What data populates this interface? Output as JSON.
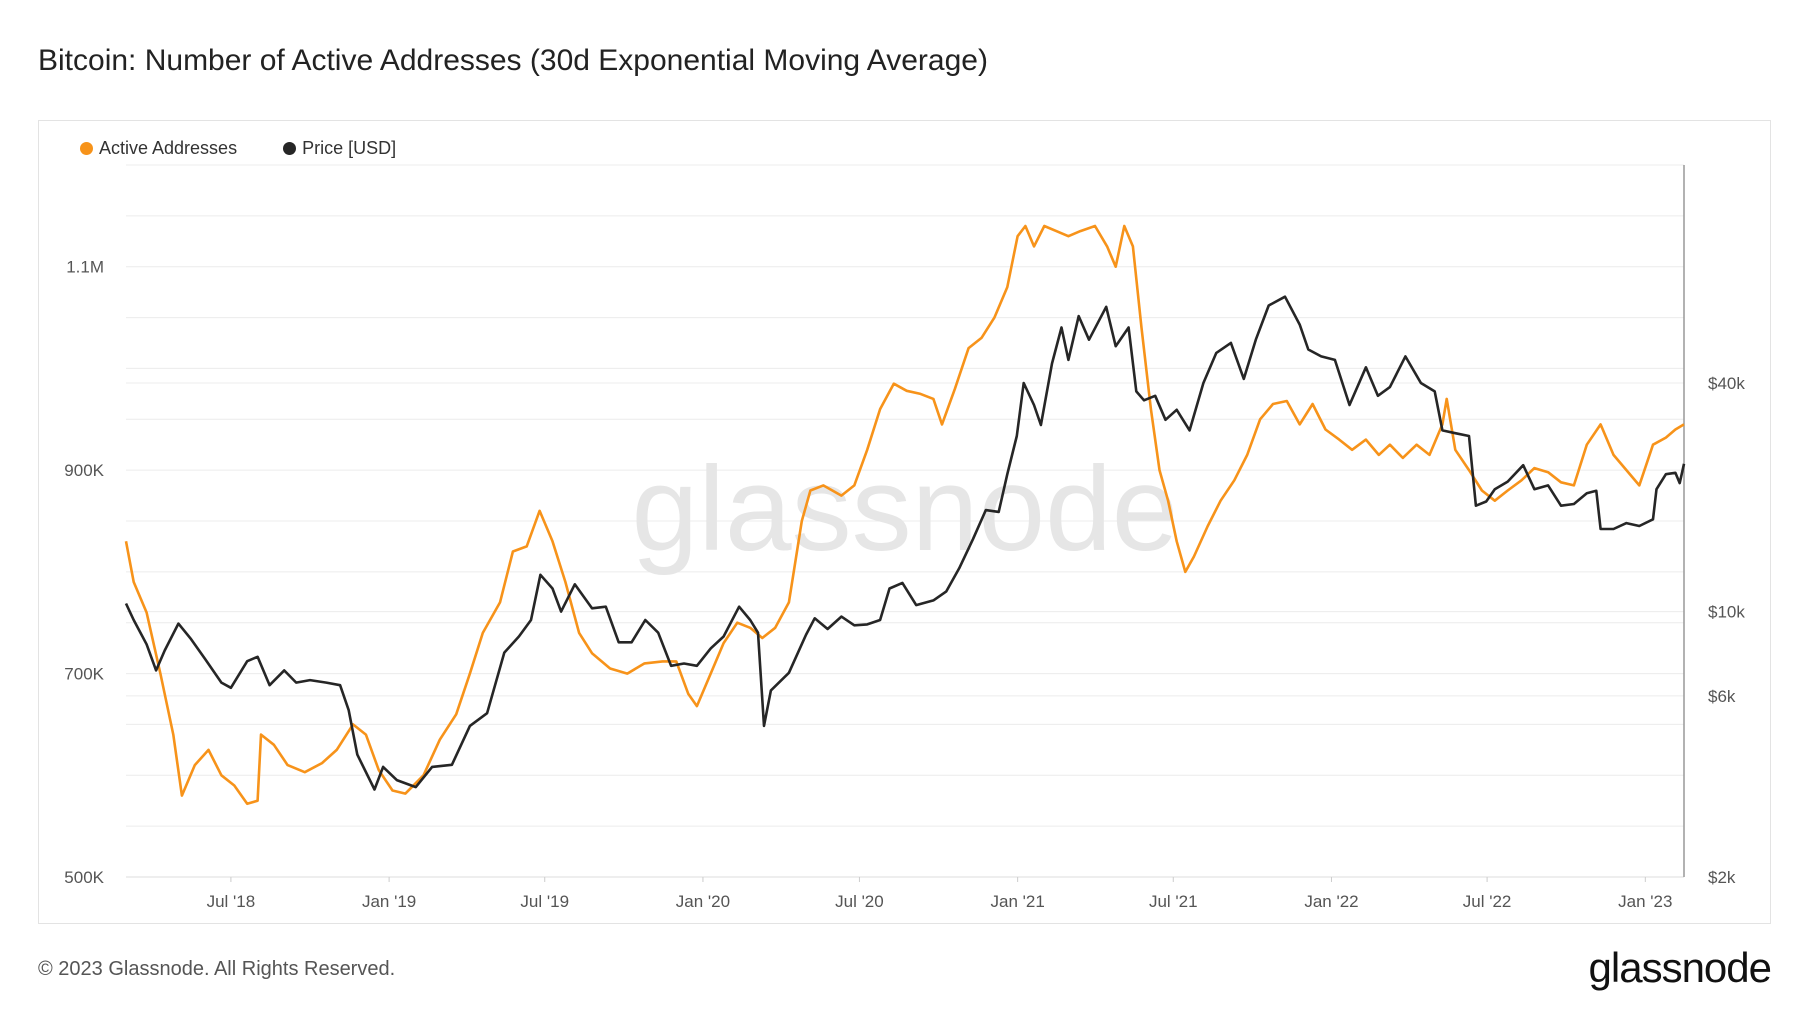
{
  "title": "Bitcoin: Number of Active Addresses (30d Exponential Moving Average)",
  "footer": "© 2023 Glassnode. All Rights Reserved.",
  "brand": "glassnode",
  "watermark": "glassnode",
  "colors": {
    "active": "#f7931a",
    "price": "#262626",
    "grid": "#ececec",
    "axisText": "#555555"
  },
  "legend": [
    {
      "label": "Active Addresses",
      "color": "#f7931a"
    },
    {
      "label": "Price [USD]",
      "color": "#262626"
    }
  ],
  "chart_data": {
    "type": "line",
    "title": "Bitcoin: Number of Active Addresses (30d Exponential Moving Average)",
    "x_range": [
      "2018-03-01",
      "2023-02-15"
    ],
    "x_ticks": [
      {
        "date": "2018-07-01",
        "label": "Jul '18"
      },
      {
        "date": "2019-01-01",
        "label": "Jan '19"
      },
      {
        "date": "2019-07-01",
        "label": "Jul '19"
      },
      {
        "date": "2020-01-01",
        "label": "Jan '20"
      },
      {
        "date": "2020-07-01",
        "label": "Jul '20"
      },
      {
        "date": "2021-01-01",
        "label": "Jan '21"
      },
      {
        "date": "2021-07-01",
        "label": "Jul '21"
      },
      {
        "date": "2022-01-01",
        "label": "Jan '22"
      },
      {
        "date": "2022-07-01",
        "label": "Jul '22"
      },
      {
        "date": "2023-01-01",
        "label": "Jan '23"
      }
    ],
    "y_left": {
      "min": 500000,
      "max": 1200000,
      "ticks": [
        500000,
        700000,
        900000,
        1100000
      ],
      "tick_labels": [
        "500K",
        "700K",
        "900K",
        "1.1M"
      ]
    },
    "y_right": {
      "scale": "log",
      "min": 2000,
      "max": 150000,
      "ticks": [
        2000,
        6000,
        10000,
        40000
      ],
      "tick_labels": [
        "$2k",
        "$6k",
        "$10k",
        "$40k"
      ]
    },
    "grid": true,
    "legend_position": "top-left",
    "series": [
      {
        "name": "Active Addresses",
        "axis": "left",
        "color": "#f7931a",
        "points": [
          [
            "2018-03-01",
            830000
          ],
          [
            "2018-03-10",
            790000
          ],
          [
            "2018-03-25",
            760000
          ],
          [
            "2018-04-10",
            700000
          ],
          [
            "2018-04-25",
            640000
          ],
          [
            "2018-05-05",
            580000
          ],
          [
            "2018-05-20",
            610000
          ],
          [
            "2018-06-05",
            625000
          ],
          [
            "2018-06-20",
            600000
          ],
          [
            "2018-07-05",
            590000
          ],
          [
            "2018-07-20",
            572000
          ],
          [
            "2018-08-01",
            575000
          ],
          [
            "2018-08-05",
            640000
          ],
          [
            "2018-08-20",
            630000
          ],
          [
            "2018-09-05",
            610000
          ],
          [
            "2018-09-25",
            603000
          ],
          [
            "2018-10-15",
            612000
          ],
          [
            "2018-11-01",
            625000
          ],
          [
            "2018-11-20",
            650000
          ],
          [
            "2018-12-05",
            640000
          ],
          [
            "2018-12-20",
            605000
          ],
          [
            "2019-01-05",
            585000
          ],
          [
            "2019-01-20",
            582000
          ],
          [
            "2019-02-10",
            600000
          ],
          [
            "2019-03-01",
            635000
          ],
          [
            "2019-03-20",
            660000
          ],
          [
            "2019-04-05",
            700000
          ],
          [
            "2019-04-20",
            740000
          ],
          [
            "2019-05-10",
            770000
          ],
          [
            "2019-05-25",
            820000
          ],
          [
            "2019-06-10",
            825000
          ],
          [
            "2019-06-25",
            860000
          ],
          [
            "2019-07-10",
            830000
          ],
          [
            "2019-07-25",
            790000
          ],
          [
            "2019-08-10",
            740000
          ],
          [
            "2019-08-25",
            720000
          ],
          [
            "2019-09-15",
            705000
          ],
          [
            "2019-10-05",
            700000
          ],
          [
            "2019-10-25",
            710000
          ],
          [
            "2019-11-15",
            712000
          ],
          [
            "2019-12-01",
            712000
          ],
          [
            "2019-12-15",
            680000
          ],
          [
            "2019-12-25",
            668000
          ],
          [
            "2020-01-10",
            700000
          ],
          [
            "2020-01-25",
            730000
          ],
          [
            "2020-02-10",
            750000
          ],
          [
            "2020-02-25",
            745000
          ],
          [
            "2020-03-10",
            735000
          ],
          [
            "2020-03-25",
            745000
          ],
          [
            "2020-04-10",
            770000
          ],
          [
            "2020-04-25",
            850000
          ],
          [
            "2020-05-05",
            880000
          ],
          [
            "2020-05-20",
            885000
          ],
          [
            "2020-06-10",
            875000
          ],
          [
            "2020-06-25",
            885000
          ],
          [
            "2020-07-10",
            920000
          ],
          [
            "2020-07-25",
            960000
          ],
          [
            "2020-08-10",
            985000
          ],
          [
            "2020-08-25",
            978000
          ],
          [
            "2020-09-10",
            975000
          ],
          [
            "2020-09-25",
            970000
          ],
          [
            "2020-10-05",
            945000
          ],
          [
            "2020-10-20",
            980000
          ],
          [
            "2020-11-05",
            1020000
          ],
          [
            "2020-11-20",
            1030000
          ],
          [
            "2020-12-05",
            1050000
          ],
          [
            "2020-12-20",
            1080000
          ],
          [
            "2021-01-01",
            1130000
          ],
          [
            "2021-01-10",
            1140000
          ],
          [
            "2021-01-20",
            1120000
          ],
          [
            "2021-02-01",
            1140000
          ],
          [
            "2021-02-15",
            1135000
          ],
          [
            "2021-03-01",
            1130000
          ],
          [
            "2021-03-15",
            1135000
          ],
          [
            "2021-04-01",
            1140000
          ],
          [
            "2021-04-15",
            1120000
          ],
          [
            "2021-04-25",
            1100000
          ],
          [
            "2021-05-05",
            1140000
          ],
          [
            "2021-05-15",
            1120000
          ],
          [
            "2021-05-25",
            1040000
          ],
          [
            "2021-06-05",
            960000
          ],
          [
            "2021-06-15",
            900000
          ],
          [
            "2021-06-25",
            870000
          ],
          [
            "2021-07-05",
            830000
          ],
          [
            "2021-07-15",
            800000
          ],
          [
            "2021-07-25",
            815000
          ],
          [
            "2021-08-10",
            845000
          ],
          [
            "2021-08-25",
            870000
          ],
          [
            "2021-09-10",
            890000
          ],
          [
            "2021-09-25",
            915000
          ],
          [
            "2021-10-10",
            950000
          ],
          [
            "2021-10-25",
            965000
          ],
          [
            "2021-11-10",
            968000
          ],
          [
            "2021-11-25",
            945000
          ],
          [
            "2021-12-10",
            965000
          ],
          [
            "2021-12-25",
            940000
          ],
          [
            "2022-01-10",
            930000
          ],
          [
            "2022-01-25",
            920000
          ],
          [
            "2022-02-10",
            930000
          ],
          [
            "2022-02-25",
            915000
          ],
          [
            "2022-03-10",
            925000
          ],
          [
            "2022-03-25",
            912000
          ],
          [
            "2022-04-10",
            925000
          ],
          [
            "2022-04-25",
            915000
          ],
          [
            "2022-05-10",
            945000
          ],
          [
            "2022-05-15",
            970000
          ],
          [
            "2022-05-25",
            920000
          ],
          [
            "2022-06-10",
            900000
          ],
          [
            "2022-06-25",
            880000
          ],
          [
            "2022-07-10",
            870000
          ],
          [
            "2022-07-25",
            880000
          ],
          [
            "2022-08-10",
            890000
          ],
          [
            "2022-08-25",
            902000
          ],
          [
            "2022-09-10",
            898000
          ],
          [
            "2022-09-25",
            888000
          ],
          [
            "2022-10-10",
            885000
          ],
          [
            "2022-10-25",
            925000
          ],
          [
            "2022-11-10",
            945000
          ],
          [
            "2022-11-25",
            915000
          ],
          [
            "2022-12-10",
            900000
          ],
          [
            "2022-12-25",
            885000
          ],
          [
            "2023-01-10",
            925000
          ],
          [
            "2023-01-25",
            932000
          ],
          [
            "2023-02-05",
            940000
          ],
          [
            "2023-02-15",
            945000
          ]
        ]
      },
      {
        "name": "Price [USD]",
        "axis": "right",
        "color": "#262626",
        "points": [
          [
            "2018-03-01",
            10500
          ],
          [
            "2018-03-10",
            9500
          ],
          [
            "2018-03-25",
            8200
          ],
          [
            "2018-04-05",
            7000
          ],
          [
            "2018-04-15",
            7900
          ],
          [
            "2018-05-01",
            9300
          ],
          [
            "2018-05-15",
            8500
          ],
          [
            "2018-06-01",
            7500
          ],
          [
            "2018-06-20",
            6500
          ],
          [
            "2018-07-01",
            6300
          ],
          [
            "2018-07-20",
            7400
          ],
          [
            "2018-08-01",
            7600
          ],
          [
            "2018-08-15",
            6400
          ],
          [
            "2018-09-01",
            7000
          ],
          [
            "2018-09-15",
            6500
          ],
          [
            "2018-10-01",
            6600
          ],
          [
            "2018-10-20",
            6500
          ],
          [
            "2018-11-05",
            6400
          ],
          [
            "2018-11-15",
            5500
          ],
          [
            "2018-11-25",
            4200
          ],
          [
            "2018-12-15",
            3400
          ],
          [
            "2018-12-25",
            3900
          ],
          [
            "2019-01-10",
            3600
          ],
          [
            "2019-02-01",
            3450
          ],
          [
            "2019-02-20",
            3900
          ],
          [
            "2019-03-15",
            3950
          ],
          [
            "2019-04-05",
            5000
          ],
          [
            "2019-04-25",
            5400
          ],
          [
            "2019-05-15",
            7800
          ],
          [
            "2019-06-01",
            8600
          ],
          [
            "2019-06-15",
            9500
          ],
          [
            "2019-06-26",
            12500
          ],
          [
            "2019-07-10",
            11500
          ],
          [
            "2019-07-20",
            10000
          ],
          [
            "2019-08-05",
            11800
          ],
          [
            "2019-08-25",
            10200
          ],
          [
            "2019-09-10",
            10300
          ],
          [
            "2019-09-25",
            8300
          ],
          [
            "2019-10-10",
            8300
          ],
          [
            "2019-10-26",
            9500
          ],
          [
            "2019-11-10",
            8800
          ],
          [
            "2019-11-25",
            7200
          ],
          [
            "2019-12-10",
            7300
          ],
          [
            "2019-12-25",
            7200
          ],
          [
            "2020-01-10",
            8000
          ],
          [
            "2020-01-25",
            8600
          ],
          [
            "2020-02-12",
            10300
          ],
          [
            "2020-02-25",
            9500
          ],
          [
            "2020-03-05",
            8800
          ],
          [
            "2020-03-12",
            5000
          ],
          [
            "2020-03-20",
            6200
          ],
          [
            "2020-04-10",
            6900
          ],
          [
            "2020-04-30",
            8700
          ],
          [
            "2020-05-10",
            9600
          ],
          [
            "2020-05-25",
            9000
          ],
          [
            "2020-06-10",
            9700
          ],
          [
            "2020-06-25",
            9200
          ],
          [
            "2020-07-10",
            9250
          ],
          [
            "2020-07-25",
            9500
          ],
          [
            "2020-08-05",
            11500
          ],
          [
            "2020-08-20",
            11900
          ],
          [
            "2020-09-05",
            10400
          ],
          [
            "2020-09-25",
            10700
          ],
          [
            "2020-10-10",
            11300
          ],
          [
            "2020-10-25",
            13000
          ],
          [
            "2020-11-10",
            15500
          ],
          [
            "2020-11-25",
            18500
          ],
          [
            "2020-12-10",
            18300
          ],
          [
            "2020-12-20",
            23000
          ],
          [
            "2020-12-31",
            29000
          ],
          [
            "2021-01-08",
            40000
          ],
          [
            "2021-01-20",
            35000
          ],
          [
            "2021-01-28",
            31000
          ],
          [
            "2021-02-10",
            45000
          ],
          [
            "2021-02-21",
            56000
          ],
          [
            "2021-03-01",
            46000
          ],
          [
            "2021-03-13",
            60000
          ],
          [
            "2021-03-25",
            52000
          ],
          [
            "2021-04-14",
            63500
          ],
          [
            "2021-04-25",
            50000
          ],
          [
            "2021-05-10",
            56000
          ],
          [
            "2021-05-19",
            38000
          ],
          [
            "2021-05-28",
            36000
          ],
          [
            "2021-06-10",
            37000
          ],
          [
            "2021-06-22",
            32000
          ],
          [
            "2021-07-05",
            34000
          ],
          [
            "2021-07-20",
            30000
          ],
          [
            "2021-08-05",
            40000
          ],
          [
            "2021-08-20",
            48000
          ],
          [
            "2021-09-06",
            51000
          ],
          [
            "2021-09-21",
            41000
          ],
          [
            "2021-10-05",
            52000
          ],
          [
            "2021-10-20",
            64000
          ],
          [
            "2021-11-08",
            67500
          ],
          [
            "2021-11-25",
            57000
          ],
          [
            "2021-12-05",
            49000
          ],
          [
            "2021-12-20",
            47000
          ],
          [
            "2022-01-05",
            46000
          ],
          [
            "2022-01-22",
            35000
          ],
          [
            "2022-02-10",
            44000
          ],
          [
            "2022-02-24",
            37000
          ],
          [
            "2022-03-10",
            39000
          ],
          [
            "2022-03-28",
            47000
          ],
          [
            "2022-04-15",
            40000
          ],
          [
            "2022-05-01",
            38000
          ],
          [
            "2022-05-10",
            30000
          ],
          [
            "2022-05-25",
            29500
          ],
          [
            "2022-06-10",
            29000
          ],
          [
            "2022-06-18",
            19000
          ],
          [
            "2022-06-30",
            19500
          ],
          [
            "2022-07-10",
            21000
          ],
          [
            "2022-07-25",
            22000
          ],
          [
            "2022-08-12",
            24300
          ],
          [
            "2022-08-25",
            21000
          ],
          [
            "2022-09-10",
            21500
          ],
          [
            "2022-09-25",
            19000
          ],
          [
            "2022-10-10",
            19200
          ],
          [
            "2022-10-25",
            20500
          ],
          [
            "2022-11-05",
            20800
          ],
          [
            "2022-11-10",
            16500
          ],
          [
            "2022-11-25",
            16500
          ],
          [
            "2022-12-10",
            17100
          ],
          [
            "2022-12-25",
            16800
          ],
          [
            "2023-01-10",
            17500
          ],
          [
            "2023-01-14",
            21000
          ],
          [
            "2023-01-25",
            23000
          ],
          [
            "2023-02-05",
            23200
          ],
          [
            "2023-02-10",
            21800
          ],
          [
            "2023-02-15",
            24500
          ]
        ]
      }
    ]
  }
}
